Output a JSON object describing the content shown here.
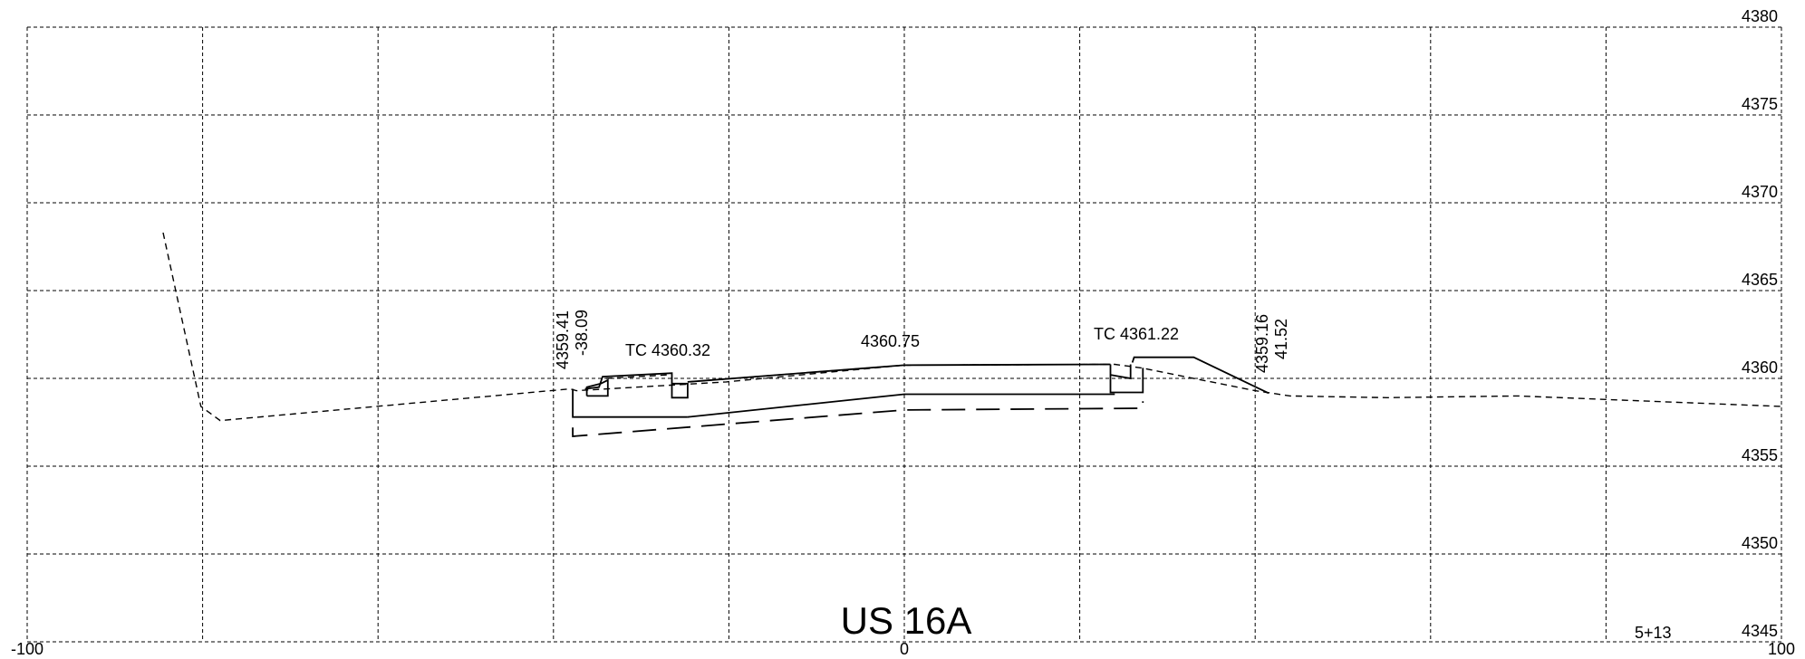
{
  "drawing": {
    "title": "US 16A",
    "station": "5+13"
  },
  "axes": {
    "offset_labels": [
      {
        "value": -100,
        "text": "-100"
      },
      {
        "value": 0,
        "text": "0"
      },
      {
        "value": 100,
        "text": "100"
      }
    ],
    "elevation_labels": [
      "4380",
      "4375",
      "4370",
      "4365",
      "4360",
      "4355",
      "4350",
      "4345"
    ],
    "offset_range": [
      -100,
      100
    ],
    "elevation_range": [
      4345,
      4380
    ],
    "grid_step_offset": 20,
    "grid_step_elevation": 5
  },
  "annotations": {
    "left_catch_elev": "4359.41",
    "left_catch_offset": "-38.09",
    "left_top_of_curb": "TC 4360.32",
    "crown_elev": "4360.75",
    "right_top_of_curb": "TC 4361.22",
    "right_catch_elev": "4359.16",
    "right_catch_offset": "41.52"
  },
  "profiles": {
    "existing_ground": [
      [
        -84.5,
        4368.3
      ],
      [
        -80.2,
        4358.4
      ],
      [
        -78.0,
        4357.6
      ],
      [
        -38.1,
        4359.4
      ],
      [
        -37.4,
        4359.3
      ],
      [
        -20.3,
        4359.8
      ],
      [
        0,
        4360.75
      ],
      [
        24.0,
        4360.8
      ],
      [
        27.0,
        4360.6
      ],
      [
        40.0,
        4359.3
      ],
      [
        44.0,
        4359.0
      ],
      [
        55.0,
        4358.9
      ],
      [
        70.0,
        4359.0
      ],
      [
        80.0,
        4358.8
      ],
      [
        100.0,
        4358.4
      ]
    ],
    "left_edge_detail": [
      [
        -36.2,
        4359.0
      ],
      [
        -33.8,
        4359.0
      ],
      [
        -33.8,
        4359.9
      ],
      [
        -34.6,
        4359.7
      ],
      [
        -36.2,
        4359.5
      ],
      [
        -36.2,
        4359.0
      ]
    ],
    "left_curb": [
      [
        -36.4,
        4359.4
      ],
      [
        -34.8,
        4359.5
      ],
      [
        -34.4,
        4360.1
      ],
      [
        -26.5,
        4360.3
      ],
      [
        -26.5,
        4359.7
      ],
      [
        -24.7,
        4359.7
      ],
      [
        -24.7,
        4358.9
      ],
      [
        -26.5,
        4358.9
      ],
      [
        -26.5,
        4359.7
      ]
    ],
    "left_inner": [
      [
        -34.0,
        4360.0
      ],
      [
        -26.9,
        4360.2
      ]
    ],
    "left_wall": [
      [
        -37.8,
        4359.4
      ],
      [
        -37.8,
        4357.8
      ],
      [
        -24.7,
        4357.8
      ]
    ],
    "proposed_top": [
      [
        -24.7,
        4359.8
      ],
      [
        0,
        4360.75
      ],
      [
        23.5,
        4360.8
      ]
    ],
    "proposed_bottom": [
      [
        -24.7,
        4357.8
      ],
      [
        0,
        4359.1
      ],
      [
        24.0,
        4359.1
      ]
    ],
    "right_curb": [
      [
        23.5,
        4360.8
      ],
      [
        23.5,
        4359.2
      ],
      [
        27.2,
        4359.2
      ],
      [
        27.2,
        4360.6
      ]
    ],
    "right_curb_inner": [
      [
        23.5,
        4360.2
      ],
      [
        25.8,
        4360.0
      ],
      [
        25.8,
        4360.8
      ]
    ],
    "right_slope": [
      [
        26.0,
        4360.9
      ],
      [
        26.2,
        4361.2
      ],
      [
        33.0,
        4361.2
      ],
      [
        41.52,
        4359.16
      ]
    ],
    "subgrade": [
      [
        -37.8,
        4357.2
      ],
      [
        -37.8,
        4356.7
      ],
      [
        0,
        4358.2
      ],
      [
        27.2,
        4358.3
      ],
      [
        27.2,
        4358.7
      ]
    ]
  }
}
